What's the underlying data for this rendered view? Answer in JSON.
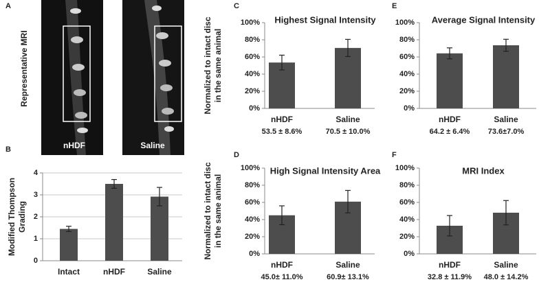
{
  "mri_panel": {
    "letter": "A",
    "ylabel": "Representative MRI",
    "images": [
      "nHDF",
      "Saline"
    ]
  },
  "chart_data": [
    {
      "type": "bar",
      "panel": "B",
      "ylabel": [
        "Modified Thompson",
        "Grading"
      ],
      "categories": [
        "Intact",
        "nHDF",
        "Saline"
      ],
      "values": [
        1.45,
        3.5,
        2.92
      ],
      "errors": [
        0.12,
        0.2,
        0.42
      ],
      "color": "#4d4d4d",
      "ylim": [
        0,
        4
      ],
      "yticks": [
        0,
        1,
        2,
        3,
        4
      ],
      "grid": true
    },
    {
      "type": "bar",
      "panel": "C",
      "title": "Highest Signal Intensity",
      "ylabel": [
        "Normalized to intact disc",
        "in the same animal"
      ],
      "categories": [
        "nHDF",
        "Saline"
      ],
      "values": [
        53.5,
        70.5
      ],
      "errors": [
        8.6,
        10.0
      ],
      "value_labels": [
        "53.5 ± 8.6%",
        "70.5 ± 10.0%"
      ],
      "color": "#4d4d4d",
      "ylim": [
        0,
        100
      ],
      "yticks": [
        {
          "value": 0,
          "label": "0%"
        },
        {
          "value": 20,
          "label": "20%"
        },
        {
          "value": 40,
          "label": "40%"
        },
        {
          "value": 60,
          "label": "60%"
        },
        {
          "value": 80,
          "label": "80%"
        },
        {
          "value": 100,
          "label": "100%"
        }
      ],
      "grid": false
    },
    {
      "type": "bar",
      "panel": "E",
      "title": "Average Signal Intensity",
      "categories": [
        "nHDF",
        "Saline"
      ],
      "values": [
        64.2,
        73.6
      ],
      "errors": [
        6.4,
        7.0
      ],
      "value_labels": [
        "64.2 ± 6.4%",
        "73.6±7.0%"
      ],
      "color": "#4d4d4d",
      "ylim": [
        0,
        100
      ],
      "yticks": [
        {
          "value": 0,
          "label": "0%"
        },
        {
          "value": 20,
          "label": "20%"
        },
        {
          "value": 40,
          "label": "40%"
        },
        {
          "value": 60,
          "label": "60%"
        },
        {
          "value": 80,
          "label": "80%"
        },
        {
          "value": 100,
          "label": "100%"
        }
      ],
      "grid": false
    },
    {
      "type": "bar",
      "panel": "D",
      "title": "High Signal Intensity Area",
      "ylabel": [
        "Normalized to intact disc",
        "in the same animal"
      ],
      "categories": [
        "nHDF",
        "Saline"
      ],
      "values": [
        45.0,
        60.9
      ],
      "errors": [
        11.0,
        13.1
      ],
      "value_labels": [
        "45.0± 11.0%",
        "60.9± 13.1%"
      ],
      "color": "#4d4d4d",
      "ylim": [
        0,
        100
      ],
      "yticks": [
        {
          "value": 0,
          "label": "0%"
        },
        {
          "value": 20,
          "label": "20%"
        },
        {
          "value": 40,
          "label": "40%"
        },
        {
          "value": 60,
          "label": "60%"
        },
        {
          "value": 80,
          "label": "80%"
        },
        {
          "value": 100,
          "label": "100%"
        }
      ],
      "grid": false
    },
    {
      "type": "bar",
      "panel": "F",
      "title": "MRI Index",
      "categories": [
        "nHDF",
        "Saline"
      ],
      "values": [
        32.8,
        48.0
      ],
      "errors": [
        11.9,
        14.2
      ],
      "value_labels": [
        "32.8 ± 11.9%",
        "48.0 ± 14.2%"
      ],
      "color": "#4d4d4d",
      "ylim": [
        0,
        100
      ],
      "yticks": [
        {
          "value": 0,
          "label": "0%"
        },
        {
          "value": 20,
          "label": "20%"
        },
        {
          "value": 40,
          "label": "40%"
        },
        {
          "value": 60,
          "label": "60%"
        },
        {
          "value": 80,
          "label": "80%"
        },
        {
          "value": 100,
          "label": "100%"
        }
      ],
      "grid": false
    }
  ]
}
